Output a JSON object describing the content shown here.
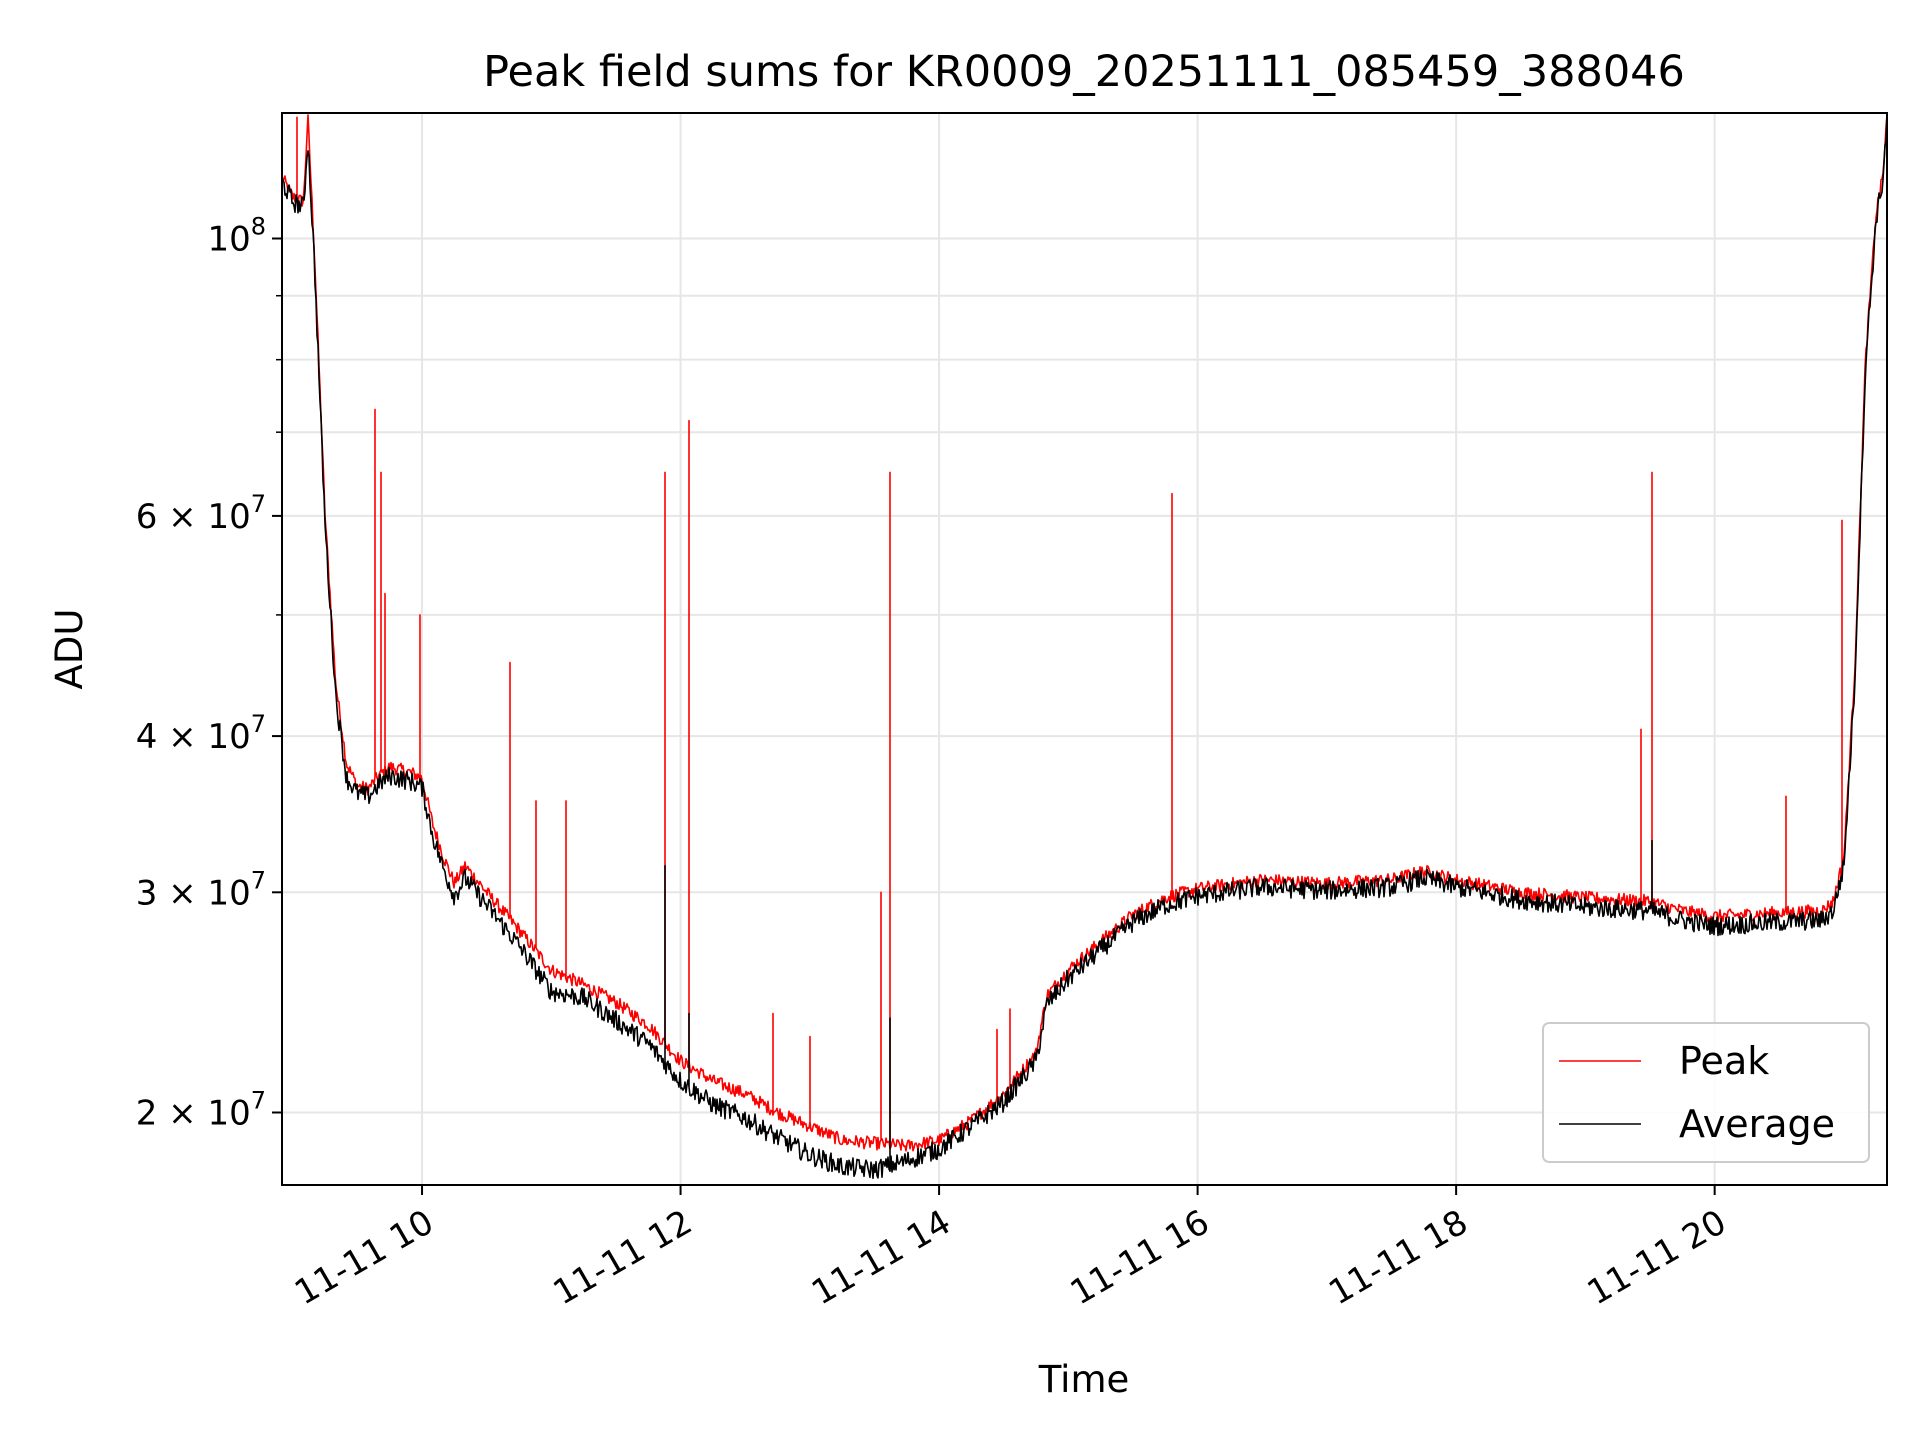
{
  "chart_data": {
    "type": "line",
    "title": "Peak field sums for KR0009_20251111_085459_388046",
    "xlabel": "Time",
    "ylabel": "ADU",
    "x_date": "2025-11-11",
    "xlim": [
      "08:55",
      "21:20"
    ],
    "ylim": [
      17500000,
      126000000
    ],
    "yscale": "log",
    "grid": true,
    "legend_position": "lower right",
    "x_ticks": [
      {
        "label": "11-11 10",
        "value": "10:00"
      },
      {
        "label": "11-11 12",
        "value": "12:00"
      },
      {
        "label": "11-11 14",
        "value": "14:00"
      },
      {
        "label": "11-11 16",
        "value": "16:00"
      },
      {
        "label": "11-11 18",
        "value": "18:00"
      },
      {
        "label": "11-11 20",
        "value": "20:00"
      }
    ],
    "y_ticks": [
      {
        "label": "10",
        "exp": "8",
        "value": 100000000
      },
      {
        "label": "6 × 10",
        "exp": "7",
        "value": 60000000
      },
      {
        "label": "4 × 10",
        "exp": "7",
        "value": 40000000
      },
      {
        "label": "3 × 10",
        "exp": "7",
        "value": 30000000
      },
      {
        "label": "2 × 10",
        "exp": "7",
        "value": 20000000
      }
    ],
    "y_minor_ticks": [
      90000000,
      80000000,
      70000000,
      50000000
    ],
    "series": [
      {
        "name": "Peak",
        "color": "#ff0000",
        "x": [
          "08:55",
          "09:00",
          "09:05",
          "09:07",
          "09:10",
          "09:15",
          "09:20",
          "09:25",
          "09:30",
          "09:35",
          "09:40",
          "09:45",
          "09:50",
          "09:55",
          "10:00",
          "10:05",
          "10:10",
          "10:15",
          "10:20",
          "10:30",
          "10:45",
          "11:00",
          "11:15",
          "11:30",
          "11:45",
          "12:00",
          "12:15",
          "12:30",
          "12:45",
          "13:00",
          "13:15",
          "13:30",
          "13:45",
          "14:00",
          "14:15",
          "14:30",
          "14:45",
          "14:50",
          "15:00",
          "15:15",
          "15:30",
          "15:45",
          "16:00",
          "16:30",
          "17:00",
          "17:30",
          "17:45",
          "18:00",
          "18:30",
          "19:00",
          "19:30",
          "19:45",
          "20:00",
          "20:30",
          "20:50",
          "20:55",
          "21:00",
          "21:05",
          "21:10",
          "21:15",
          "21:18",
          "21:20"
        ],
        "y": [
          112000000,
          108000000,
          107000000,
          125000000,
          98000000,
          60000000,
          44000000,
          38000000,
          36500000,
          36300000,
          37200000,
          37800000,
          37600000,
          37400000,
          37000000,
          34000000,
          32000000,
          30500000,
          31500000,
          30000000,
          28000000,
          26000000,
          25300000,
          24500000,
          23500000,
          22000000,
          21200000,
          20700000,
          20000000,
          19500000,
          19000000,
          18900000,
          18800000,
          19000000,
          19700000,
          20700000,
          22300000,
          24800000,
          26000000,
          27400000,
          28800000,
          29700000,
          30200000,
          30700000,
          30500000,
          30700000,
          31200000,
          30700000,
          30000000,
          29700000,
          29500000,
          29000000,
          28700000,
          28900000,
          29000000,
          29500000,
          32000000,
          45000000,
          80000000,
          105000000,
          112000000,
          125000000
        ]
      },
      {
        "name": "Average",
        "color": "#000000",
        "x": [
          "08:55",
          "09:00",
          "09:05",
          "09:07",
          "09:10",
          "09:15",
          "09:20",
          "09:25",
          "09:30",
          "09:35",
          "09:40",
          "09:45",
          "09:50",
          "09:55",
          "10:00",
          "10:05",
          "10:10",
          "10:15",
          "10:20",
          "10:30",
          "10:45",
          "11:00",
          "11:15",
          "11:30",
          "11:45",
          "12:00",
          "12:15",
          "12:30",
          "12:45",
          "13:00",
          "13:15",
          "13:30",
          "13:45",
          "14:00",
          "14:15",
          "14:30",
          "14:45",
          "14:50",
          "15:00",
          "15:15",
          "15:30",
          "15:45",
          "16:00",
          "16:30",
          "17:00",
          "17:30",
          "17:45",
          "18:00",
          "18:30",
          "19:00",
          "19:30",
          "19:45",
          "20:00",
          "20:30",
          "20:50",
          "20:55",
          "21:00",
          "21:05",
          "21:10",
          "21:15",
          "21:18",
          "21:20"
        ],
        "y": [
          111000000,
          107000000,
          106000000,
          120000000,
          96000000,
          59000000,
          43000000,
          37000000,
          36000000,
          35800000,
          36600000,
          37200000,
          37000000,
          36800000,
          36400000,
          33300000,
          31300000,
          29800000,
          30800000,
          29300000,
          27200000,
          25000000,
          24700000,
          23700000,
          22700000,
          21200000,
          20300000,
          19800000,
          19100000,
          18500000,
          18100000,
          18000000,
          18300000,
          18700000,
          19500000,
          20400000,
          22000000,
          24400000,
          25600000,
          27000000,
          28400000,
          29300000,
          29800000,
          30300000,
          30100000,
          30300000,
          30800000,
          30300000,
          29600000,
          29200000,
          29000000,
          28500000,
          28200000,
          28400000,
          28500000,
          29000000,
          31500000,
          44000000,
          79000000,
          104000000,
          111000000,
          124000000
        ]
      }
    ],
    "peak_spikes": [
      {
        "x": "09:02",
        "y": 125000000
      },
      {
        "x": "09:38",
        "y": 73000000
      },
      {
        "x": "09:41",
        "y": 65000000
      },
      {
        "x": "09:43",
        "y": 52000000
      },
      {
        "x": "09:59",
        "y": 50000000
      },
      {
        "x": "10:41",
        "y": 45800000
      },
      {
        "x": "10:53",
        "y": 35500000
      },
      {
        "x": "11:07",
        "y": 35500000
      },
      {
        "x": "11:53",
        "y": 65000000
      },
      {
        "x": "12:04",
        "y": 71500000
      },
      {
        "x": "12:43",
        "y": 24000000
      },
      {
        "x": "13:00",
        "y": 23000000
      },
      {
        "x": "13:33",
        "y": 30000000
      },
      {
        "x": "13:37",
        "y": 65000000
      },
      {
        "x": "14:27",
        "y": 23300000
      },
      {
        "x": "14:33",
        "y": 24200000
      },
      {
        "x": "15:48",
        "y": 62500000
      },
      {
        "x": "19:26",
        "y": 40500000
      },
      {
        "x": "19:31",
        "y": 65000000
      },
      {
        "x": "20:33",
        "y": 35800000
      },
      {
        "x": "20:59",
        "y": 59500000
      }
    ],
    "average_spikes": [
      {
        "x": "11:53",
        "y": 31500000
      },
      {
        "x": "12:04",
        "y": 24000000
      },
      {
        "x": "13:37",
        "y": 23800000
      },
      {
        "x": "19:31",
        "y": 33000000
      }
    ]
  }
}
